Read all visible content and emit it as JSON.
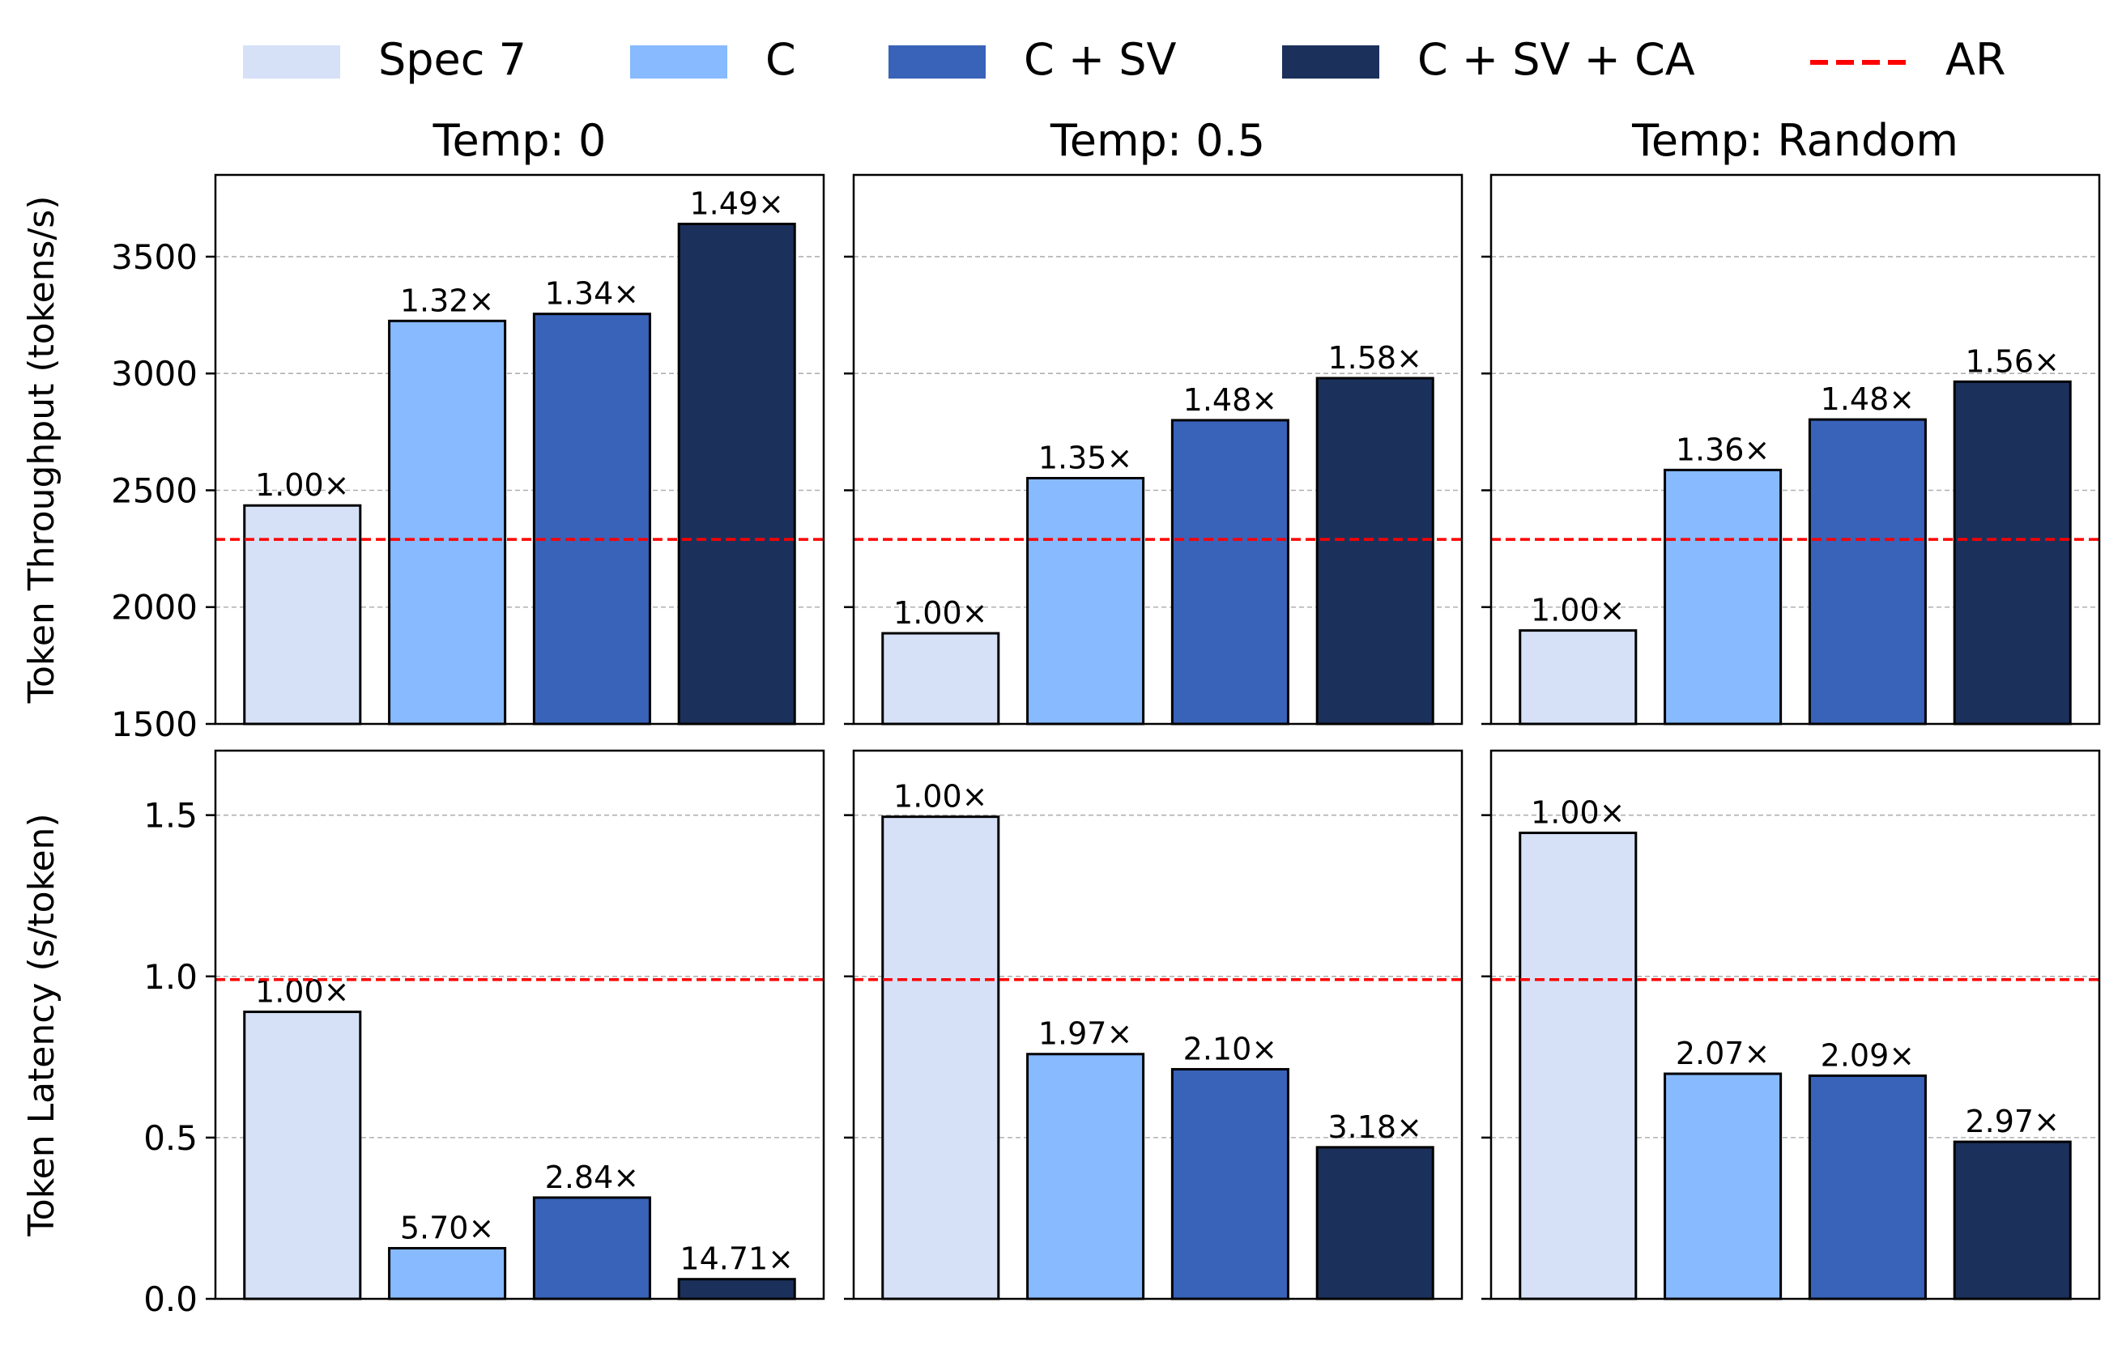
{
  "legend": {
    "placement": "top",
    "items": [
      {
        "label": "Spec 7",
        "color": "#d6e1f7",
        "kind": "patch"
      },
      {
        "label": "C",
        "color": "#87baff",
        "kind": "patch"
      },
      {
        "label": "C + SV",
        "color": "#3963b9",
        "kind": "patch"
      },
      {
        "label": "C + SV + CA",
        "color": "#1b315c",
        "kind": "patch"
      },
      {
        "label": "AR",
        "color": "#ff0000",
        "kind": "dashed-line"
      }
    ]
  },
  "chart_data": [
    {
      "type": "bar",
      "title": "Temp: 0",
      "ylabel": "Token Throughput (tokens/s)",
      "ylim": [
        1500,
        3850
      ],
      "yticks": [
        1500,
        2000,
        2500,
        3000,
        3500
      ],
      "tick_labels": [
        "1500",
        "2000",
        "2500",
        "3000",
        "3500"
      ],
      "grid": true,
      "reference_line": {
        "name": "AR",
        "value": 2290
      },
      "categories": [
        "Spec 7",
        "C",
        "C + SV",
        "C + SV + CA"
      ],
      "values": [
        2435,
        3225,
        3255,
        3640
      ],
      "labels": [
        "1.00×",
        "1.32×",
        "1.34×",
        "1.49×"
      ]
    },
    {
      "type": "bar",
      "title": "Temp: 0.5",
      "ylabel": "",
      "ylim": [
        1500,
        3850
      ],
      "yticks": [
        1500,
        2000,
        2500,
        3000,
        3500
      ],
      "tick_labels": [],
      "grid": true,
      "reference_line": {
        "name": "AR",
        "value": 2290
      },
      "categories": [
        "Spec 7",
        "C",
        "C + SV",
        "C + SV + CA"
      ],
      "values": [
        1888,
        2552,
        2800,
        2980
      ],
      "labels": [
        "1.00×",
        "1.35×",
        "1.48×",
        "1.58×"
      ]
    },
    {
      "type": "bar",
      "title": "Temp: Random",
      "ylabel": "",
      "ylim": [
        1500,
        3850
      ],
      "yticks": [
        1500,
        2000,
        2500,
        3000,
        3500
      ],
      "tick_labels": [],
      "grid": true,
      "reference_line": {
        "name": "AR",
        "value": 2290
      },
      "categories": [
        "Spec 7",
        "C",
        "C + SV",
        "C + SV + CA"
      ],
      "values": [
        1900,
        2587,
        2803,
        2965
      ],
      "labels": [
        "1.00×",
        "1.36×",
        "1.48×",
        "1.56×"
      ]
    },
    {
      "type": "bar",
      "title": "",
      "ylabel": "Token Latency (s/token)",
      "ylim": [
        0,
        1.7
      ],
      "yticks": [
        0,
        0.5,
        1.0,
        1.5
      ],
      "tick_labels": [
        "0.0",
        "0.5",
        "1.0",
        "1.5"
      ],
      "grid": true,
      "reference_line": {
        "name": "AR",
        "value": 0.99
      },
      "categories": [
        "Spec 7",
        "C",
        "C + SV",
        "C + SV + CA"
      ],
      "values": [
        0.89,
        0.157,
        0.314,
        0.061
      ],
      "labels": [
        "1.00×",
        "5.70×",
        "2.84×",
        "14.71×"
      ]
    },
    {
      "type": "bar",
      "title": "",
      "ylabel": "",
      "ylim": [
        0,
        1.7
      ],
      "yticks": [
        0,
        0.5,
        1.0,
        1.5
      ],
      "tick_labels": [],
      "grid": true,
      "reference_line": {
        "name": "AR",
        "value": 0.99
      },
      "categories": [
        "Spec 7",
        "C",
        "C + SV",
        "C + SV + CA"
      ],
      "values": [
        1.495,
        0.759,
        0.712,
        0.47
      ],
      "labels": [
        "1.00×",
        "1.97×",
        "2.10×",
        "3.18×"
      ]
    },
    {
      "type": "bar",
      "title": "",
      "ylabel": "",
      "ylim": [
        0,
        1.7
      ],
      "yticks": [
        0,
        0.5,
        1.0,
        1.5
      ],
      "tick_labels": [],
      "grid": true,
      "reference_line": {
        "name": "AR",
        "value": 0.99
      },
      "categories": [
        "Spec 7",
        "C",
        "C + SV",
        "C + SV + CA"
      ],
      "values": [
        1.445,
        0.698,
        0.692,
        0.487
      ],
      "labels": [
        "1.00×",
        "2.07×",
        "2.09×",
        "2.97×"
      ]
    }
  ]
}
